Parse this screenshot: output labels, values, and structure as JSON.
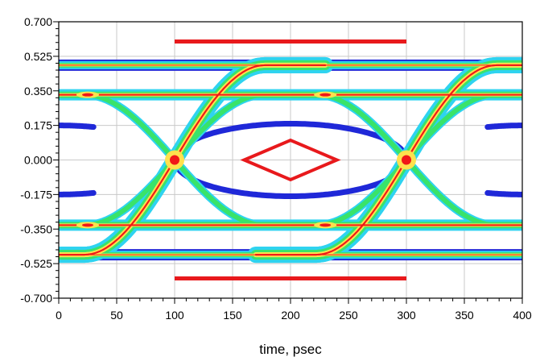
{
  "chart_data": {
    "type": "eye-diagram",
    "title": "",
    "xlabel": "time, psec",
    "ylabel": "",
    "xlim": [
      0,
      400
    ],
    "ylim": [
      -0.7,
      0.7
    ],
    "grid": true,
    "x_ticks": [
      0,
      50,
      100,
      150,
      200,
      250,
      300,
      350,
      400
    ],
    "x_tick_labels": [
      "0",
      "50",
      "100",
      "150",
      "200",
      "250",
      "300",
      "350",
      "400"
    ],
    "y_ticks": [
      0.7,
      0.525,
      0.35,
      0.175,
      0.0,
      -0.175,
      -0.35,
      -0.525,
      -0.7
    ],
    "y_tick_labels": [
      "0.700",
      "0.525",
      "0.350",
      "0.175",
      "0.000",
      "-0.175",
      "-0.350",
      "-0.525",
      "-0.700"
    ],
    "eye": {
      "bit_period_ps": 200,
      "crossings_ps": [
        100,
        300
      ],
      "levels": [
        0.48,
        -0.48
      ],
      "inner_levels": [
        0.33,
        -0.33
      ],
      "crossing_level": 0.0
    },
    "mask": {
      "color": "#e8191c",
      "upper_limit": {
        "x": [
          100,
          300
        ],
        "y": 0.6
      },
      "lower_limit": {
        "x": [
          100,
          300
        ],
        "y": -0.6
      },
      "center_diamond": [
        [
          160,
          0.0
        ],
        [
          200,
          0.1
        ],
        [
          240,
          0.0
        ],
        [
          200,
          -0.1
        ]
      ]
    },
    "density_colors": [
      "#1f28d8",
      "#2ed3f0",
      "#39e36a",
      "#ffe14d",
      "#f01818"
    ]
  }
}
